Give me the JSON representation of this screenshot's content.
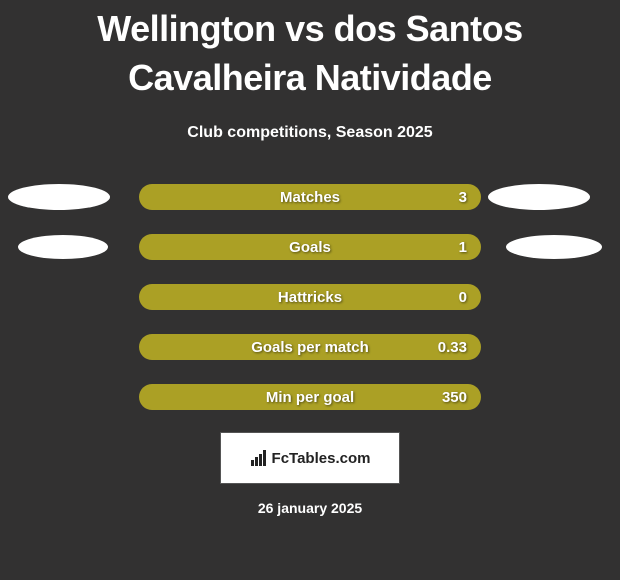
{
  "title": "Wellington vs dos Santos Cavalheira Natividade",
  "subtitle": "Club competitions, Season 2025",
  "colors": {
    "background": "#323131",
    "bar": "#aba025",
    "ellipse": "#ffffff",
    "text": "#ffffff"
  },
  "stats": [
    {
      "label": "Matches",
      "value": "3",
      "showLeftEllipse": true,
      "showRightEllipse": true,
      "ellipseRowClass": ""
    },
    {
      "label": "Goals",
      "value": "1",
      "showLeftEllipse": true,
      "showRightEllipse": true,
      "ellipseRowClass": "row2"
    },
    {
      "label": "Hattricks",
      "value": "0",
      "showLeftEllipse": false,
      "showRightEllipse": false,
      "ellipseRowClass": ""
    },
    {
      "label": "Goals per match",
      "value": "0.33",
      "showLeftEllipse": false,
      "showRightEllipse": false,
      "ellipseRowClass": ""
    },
    {
      "label": "Min per goal",
      "value": "350",
      "showLeftEllipse": false,
      "showRightEllipse": false,
      "ellipseRowClass": ""
    }
  ],
  "logo": {
    "text": "FcTables.com"
  },
  "date": "26 january 2025"
}
